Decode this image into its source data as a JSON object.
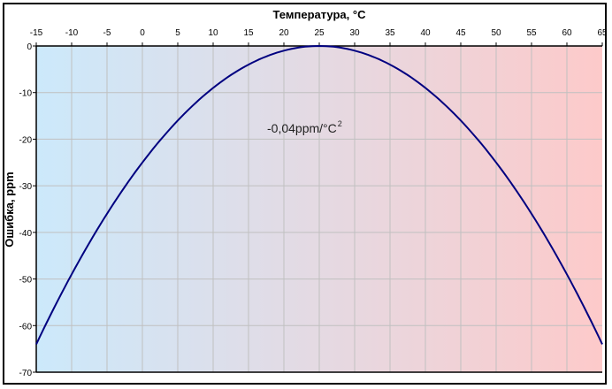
{
  "chart_data": {
    "type": "line",
    "title": "",
    "xlabel": "Температура, °C",
    "ylabel": "Ошибка, ppm",
    "xlim": [
      -15,
      65
    ],
    "ylim": [
      -70,
      0
    ],
    "x_ticks": [
      -15,
      -10,
      -5,
      0,
      5,
      10,
      15,
      20,
      25,
      30,
      35,
      40,
      45,
      50,
      55,
      60,
      65
    ],
    "y_ticks": [
      0,
      -10,
      -20,
      -30,
      -40,
      -50,
      -60,
      -70
    ],
    "x_axis_position": "top",
    "grid": true,
    "annotation": "-0,04ppm/°C",
    "annotation_superscript": "2",
    "series": [
      {
        "name": "error",
        "formula": "-0.04*(T-25)^2",
        "color": "#000080",
        "x": [
          -15,
          -10,
          -5,
          0,
          5,
          10,
          15,
          20,
          25,
          30,
          35,
          40,
          45,
          50,
          55,
          60,
          65
        ],
        "y": [
          -64,
          -49,
          -36,
          -25,
          -16,
          -9,
          -4,
          -1,
          0,
          -1,
          -4,
          -9,
          -16,
          -25,
          -36,
          -49,
          -64
        ]
      }
    ],
    "background_gradient": [
      "#cce9fb",
      "#fdcaca"
    ]
  }
}
